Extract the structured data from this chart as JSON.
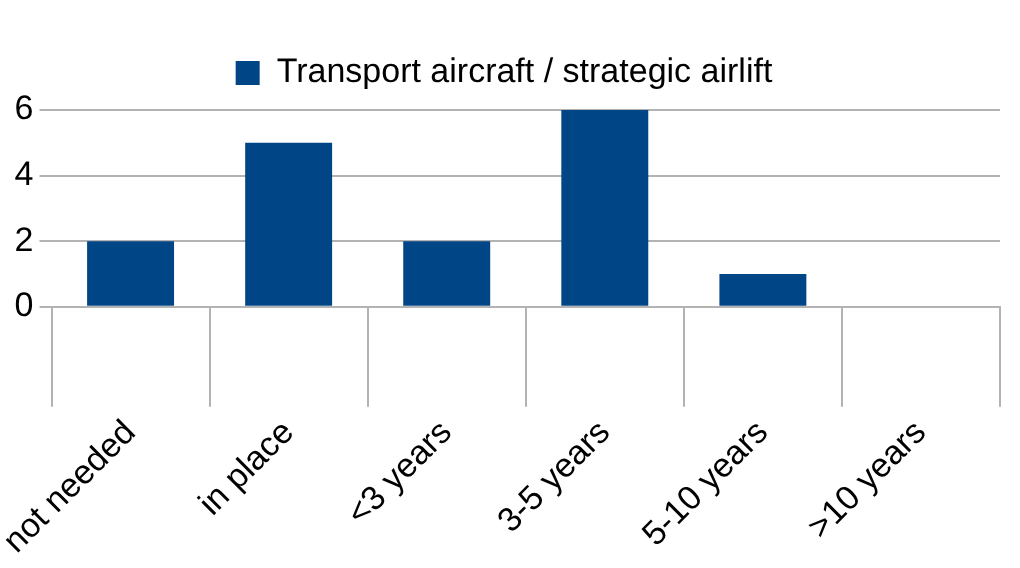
{
  "chart_data": {
    "type": "bar",
    "categories": [
      "not needed",
      "in place",
      "<3 years",
      "3-5 years",
      "5-10 years",
      ">10 years"
    ],
    "series": [
      {
        "name": "Transport aircraft / strategic airlift",
        "color": "#004586",
        "values": [
          2,
          5,
          2,
          6,
          1,
          0
        ]
      }
    ],
    "ylim": [
      0,
      6
    ],
    "yticks": [
      0,
      2,
      4,
      6
    ],
    "grid": "y",
    "legend": "top"
  }
}
